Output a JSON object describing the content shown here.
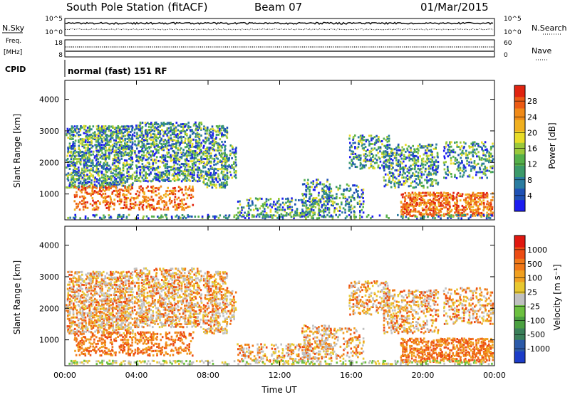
{
  "header": {
    "title": "South Pole Station (fitACF)",
    "beam": "Beam 07",
    "date": "01/Mar/2015"
  },
  "top_panels": {
    "nsky_label": "N.Sky",
    "nsky_ticks": [
      "10^5",
      "10^0"
    ],
    "nsearch_label": "N.Search",
    "nsearch_ticks": [
      "10^5",
      "10^0"
    ],
    "freq_label_1": "Freq.",
    "freq_label_2": "[MHz]",
    "freq_ticks": [
      "18",
      "8"
    ],
    "nave_label": "Nave",
    "nave_ticks": [
      "60",
      "0"
    ],
    "cpid_label": "CPID",
    "cpid_text": "normal (fast) 151 RF"
  },
  "chart_data": [
    {
      "type": "heatmap",
      "name": "power",
      "ylabel": "Slant Range [km]",
      "ylim": [
        180,
        4600
      ],
      "yticks": [
        "1000",
        "2000",
        "3000",
        "4000"
      ],
      "colorbar_label": "Power [dB]",
      "colorbar_ticks": [
        "4",
        "8",
        "12",
        "16",
        "20",
        "24",
        "28"
      ],
      "colors": [
        "#1c1cf0",
        "#1e50b4",
        "#2a7ca0",
        "#3c9a6a",
        "#55b04a",
        "#9ac83a",
        "#e8dc28",
        "#f0b020",
        "#f08a18",
        "#ec5a14",
        "#e02410"
      ]
    },
    {
      "type": "heatmap",
      "name": "velocity",
      "ylabel": "Slant Range [km]",
      "ylim": [
        180,
        4600
      ],
      "yticks": [
        "1000",
        "2000",
        "3000",
        "4000"
      ],
      "xlabel": "Time UT",
      "xticks": [
        "00:00",
        "04:00",
        "08:00",
        "12:00",
        "16:00",
        "20:00",
        "00:00"
      ],
      "colorbar_label": "Velocity [m s⁻¹]",
      "colorbar_ticks": [
        "1000",
        "500",
        "100",
        "25",
        "-25",
        "-100",
        "-500",
        "-1000"
      ],
      "colors": [
        "#1c3cc8",
        "#2c5aa8",
        "#3a7f5a",
        "#4aa040",
        "#6cc040",
        "#c0c0c0",
        "#e8c830",
        "#f0a020",
        "#f07818",
        "#ec4c14",
        "#e01810"
      ]
    }
  ]
}
